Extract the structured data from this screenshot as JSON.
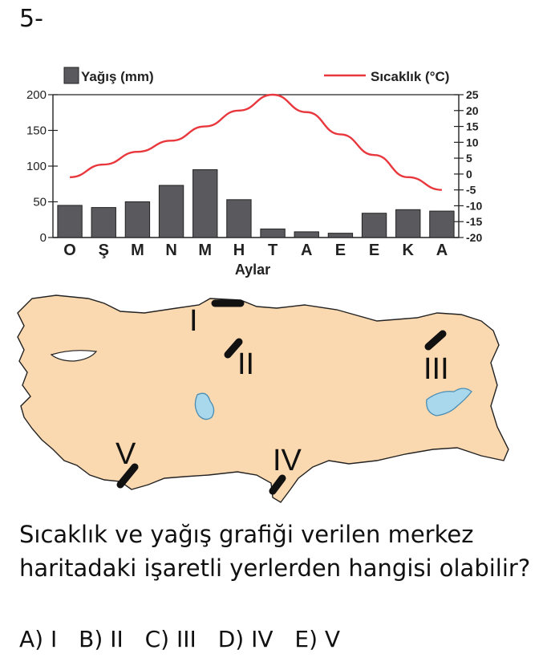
{
  "question_number": "5-",
  "chart_data": {
    "type": "bar",
    "xlabel": "Aylar",
    "categories": [
      "O",
      "Ş",
      "M",
      "N",
      "M",
      "H",
      "T",
      "A",
      "E",
      "E",
      "K",
      "A"
    ],
    "series": [
      {
        "name": "Yağış (mm)",
        "type": "bar",
        "axis": "left",
        "values": [
          45,
          42,
          50,
          73,
          95,
          53,
          12,
          8,
          6,
          34,
          39,
          37
        ]
      },
      {
        "name": "Sıcaklık (°C)",
        "type": "line",
        "axis": "right",
        "color": "#e8383d",
        "values": [
          -1,
          3,
          7,
          10.5,
          15,
          20,
          25,
          19.5,
          12.5,
          6,
          -1,
          -5
        ]
      }
    ],
    "left_axis": {
      "ylim": [
        0,
        200
      ],
      "ticks": [
        "0",
        "50",
        "100",
        "150",
        "200"
      ]
    },
    "right_axis": {
      "ylim": [
        -20,
        25
      ],
      "ticks": [
        "-20",
        "-15",
        "-10",
        "-5",
        "0",
        "5",
        "10",
        "15",
        "20",
        "25"
      ]
    },
    "bar_color": "#5a5a5e",
    "line_color": "#e8383d"
  },
  "map": {
    "land_color": "#fbd9b0",
    "lake_color": "#a9d7ec",
    "markers": [
      "I",
      "II",
      "III",
      "IV",
      "V"
    ]
  },
  "question": {
    "line1": "Sıcaklık ve yağış grafiği verilen merkez",
    "line2": "haritadaki işaretli yerlerden hangisi olabilir?"
  },
  "options": [
    "A) I",
    "B) II",
    "C) III",
    "D) IV",
    "E) V"
  ]
}
